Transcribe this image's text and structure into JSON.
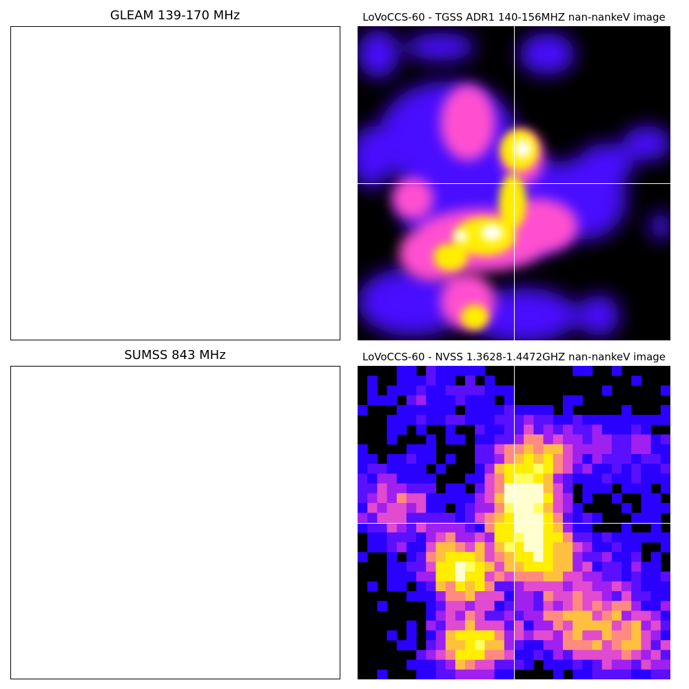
{
  "panels": [
    {
      "title": "GLEAM 139-170 MHz"
    },
    {
      "title": "LoVoCCS-60 -  TGSS ADR1 140-156MHZ nan-nankeV image"
    },
    {
      "title": "SUMSS 843 MHz"
    },
    {
      "title": "LoVoCCS-60 -  NVSS 1.3628-1.4472GHZ nan-nankeV image"
    }
  ],
  "colors": {
    "background": "#000000",
    "low": "#3a00ff",
    "mid": "#ff5ec8",
    "high": "#ffff00",
    "peak": "#ffffff",
    "crosshair": "#ffffff"
  }
}
